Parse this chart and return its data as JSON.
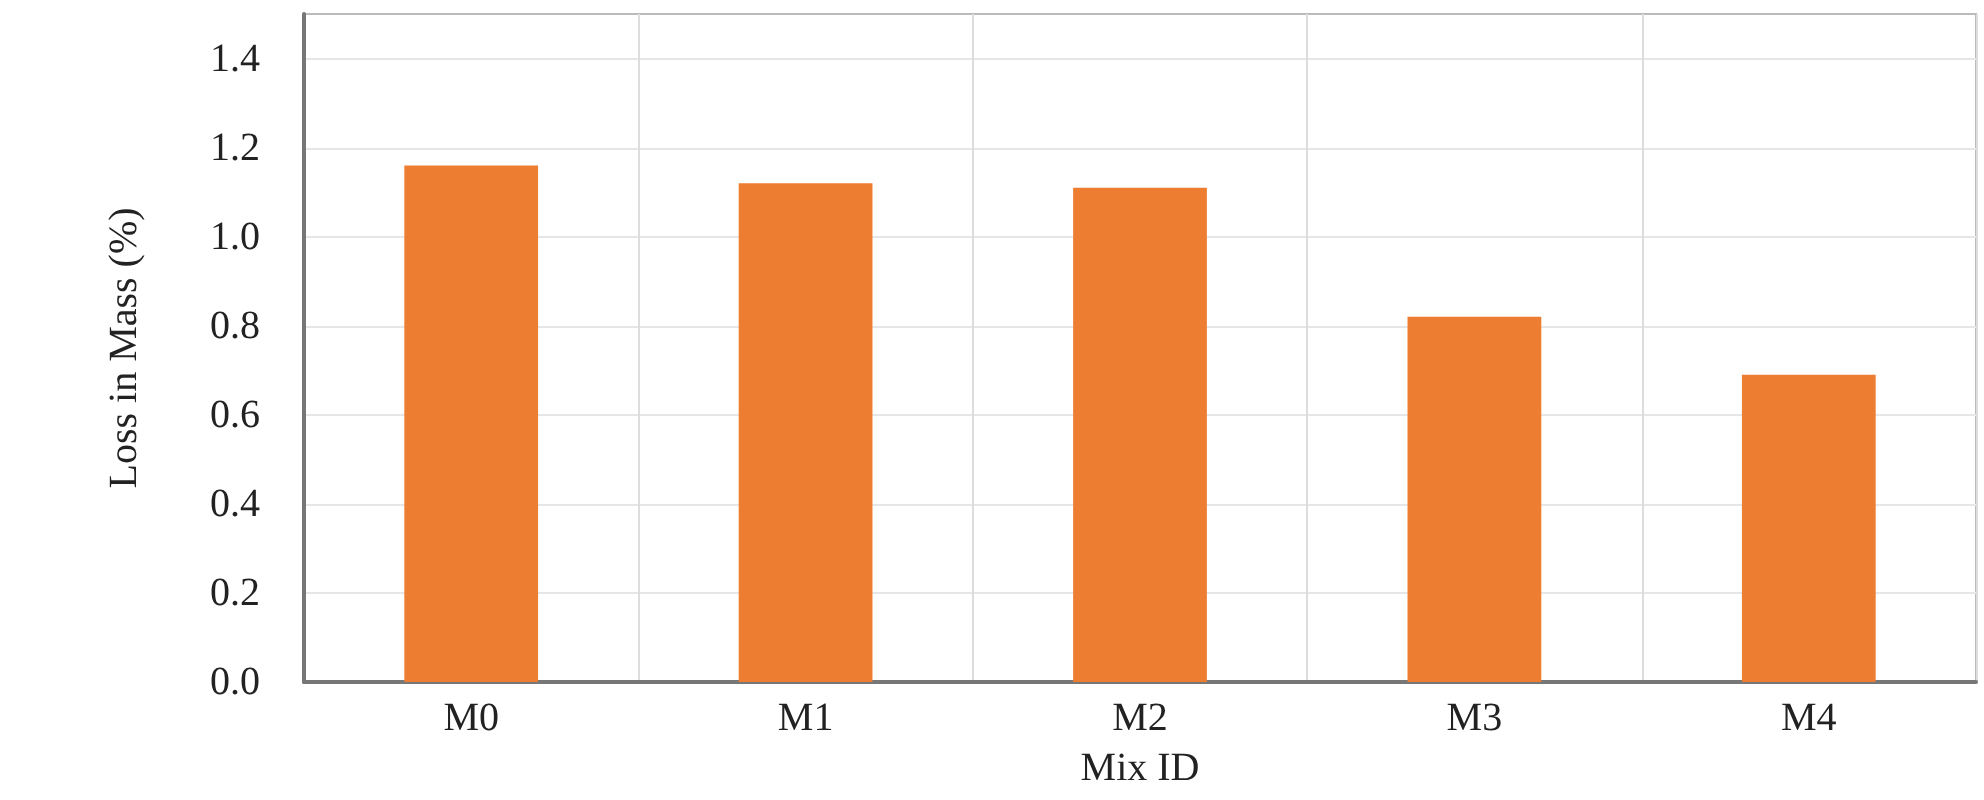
{
  "chart_data": {
    "type": "bar",
    "xlabel": "Mix ID",
    "ylabel": "Loss in Mass (%)",
    "categories": [
      "M0",
      "M1",
      "M2",
      "M3",
      "M4"
    ],
    "values": [
      1.16,
      1.12,
      1.11,
      0.82,
      0.69
    ],
    "color": "#ed7d31",
    "ylim": [
      0,
      1.5
    ],
    "yticks": [
      {
        "value": 0,
        "label": "0.0"
      },
      {
        "value": 0.2,
        "label": "0.2"
      },
      {
        "value": 0.4,
        "label": "0.4"
      },
      {
        "value": 0.6,
        "label": "0.6"
      },
      {
        "value": 0.8,
        "label": "0.8"
      },
      {
        "value": 1.0,
        "label": "1.0"
      },
      {
        "value": 1.2,
        "label": "1.2"
      },
      {
        "value": 1.4,
        "label": "1.4"
      }
    ],
    "grid": true
  }
}
